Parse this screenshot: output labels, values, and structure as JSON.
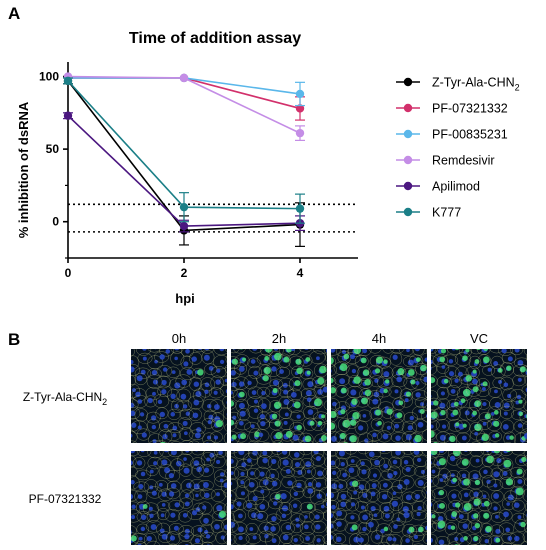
{
  "panel_a": {
    "label": "A"
  },
  "panel_b": {
    "label": "B",
    "columns": [
      "0h",
      "2h",
      "4h",
      "VC"
    ],
    "rows": [
      "Z-Tyr-Ala-CHN",
      "PF-07321332"
    ],
    "row0_subscript": "2",
    "tiles": [
      [
        0.05,
        0.85,
        0.75,
        0.9
      ],
      [
        0.05,
        0.07,
        0.08,
        0.85
      ]
    ],
    "colors": {
      "tile_bg": "#06121f",
      "cell_blue": "#2b4fd8",
      "cell_green": "#49e07a",
      "outline": "#c8cd8a"
    }
  },
  "chart_data": {
    "type": "line",
    "title": "Time of addition assay",
    "xlabel": "hpi",
    "ylabel": "% inhibition of dsRNA",
    "x": [
      0,
      2,
      4
    ],
    "xticks": [
      0,
      2,
      4
    ],
    "yticks": [
      0,
      50,
      100
    ],
    "xlim": [
      0,
      5
    ],
    "ylim": [
      -25,
      110
    ],
    "reference_lines": [
      12,
      -7
    ],
    "legend_position": "right",
    "series": [
      {
        "name": "Z-Tyr-Ala-CHN",
        "name_subscript": "2",
        "color": "#000000",
        "values": [
          97,
          -6,
          -2
        ],
        "errors": [
          2,
          10,
          15
        ]
      },
      {
        "name": "PF-07321332",
        "color": "#d2306b",
        "values": [
          99,
          99,
          78
        ],
        "errors": [
          1,
          1,
          8
        ]
      },
      {
        "name": "PF-00835231",
        "color": "#5ab7ea",
        "values": [
          99,
          99,
          88
        ],
        "errors": [
          1,
          1,
          8
        ]
      },
      {
        "name": "Remdesivir",
        "color": "#c48de6",
        "values": [
          100,
          99,
          61
        ],
        "errors": [
          1,
          1,
          5
        ]
      },
      {
        "name": "Apilimod",
        "color": "#4b1780",
        "values": [
          73,
          -3,
          -1
        ],
        "errors": [
          2,
          4,
          5
        ]
      },
      {
        "name": "K777",
        "color": "#1b7f87",
        "values": [
          97,
          10,
          9
        ],
        "errors": [
          2,
          10,
          10
        ]
      }
    ]
  }
}
